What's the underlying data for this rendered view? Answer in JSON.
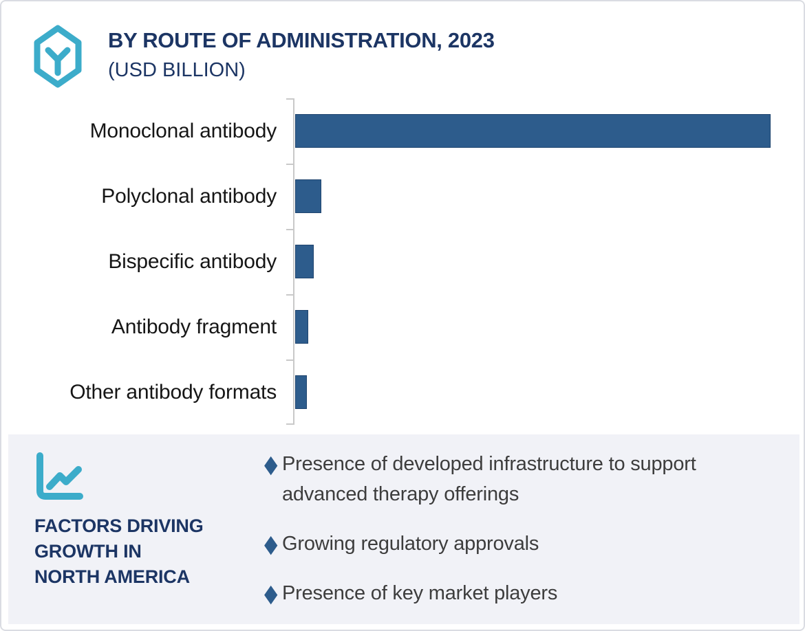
{
  "colors": {
    "navy": "#1c3564",
    "teal": "#3cacca",
    "bar": "#2d5c8c",
    "panel": "#f1f2f7",
    "axis": "#c9c9c9",
    "text": "#161616",
    "bullettext": "#3d3d3d",
    "border": "#dadce2"
  },
  "header": {
    "icon": "antibody-hexagon-icon",
    "title": "BY ROUTE OF ADMINISTRATION, 2023",
    "subtitle": "(USD BILLION)"
  },
  "chart_data": {
    "type": "bar",
    "orientation": "horizontal",
    "title": "BY ROUTE OF ADMINISTRATION, 2023",
    "unit": "USD Billion",
    "categories": [
      "Monoclonal antibody",
      "Polyclonal antibody",
      "Bispecific antibody",
      "Antibody fragment",
      "Other antibody formats"
    ],
    "values_pct_of_max_bar": [
      100,
      5.5,
      3.9,
      2.7,
      2.5
    ],
    "value_labels_shown": false,
    "axis_tick_labels_shown": false,
    "grid": false,
    "legend": false,
    "bar_color": "#2d5c8c",
    "axis_color": "#c9c9c9"
  },
  "factors_panel": {
    "icon": "line-chart-icon",
    "bullet_icon": "diamond-bullet-icon",
    "heading_lines": [
      "FACTORS DRIVING",
      "GROWTH IN",
      "NORTH AMERICA"
    ],
    "bullets": [
      "Presence of developed infrastructure to support advanced therapy offerings",
      "Growing regulatory approvals",
      "Presence of key market players"
    ]
  }
}
